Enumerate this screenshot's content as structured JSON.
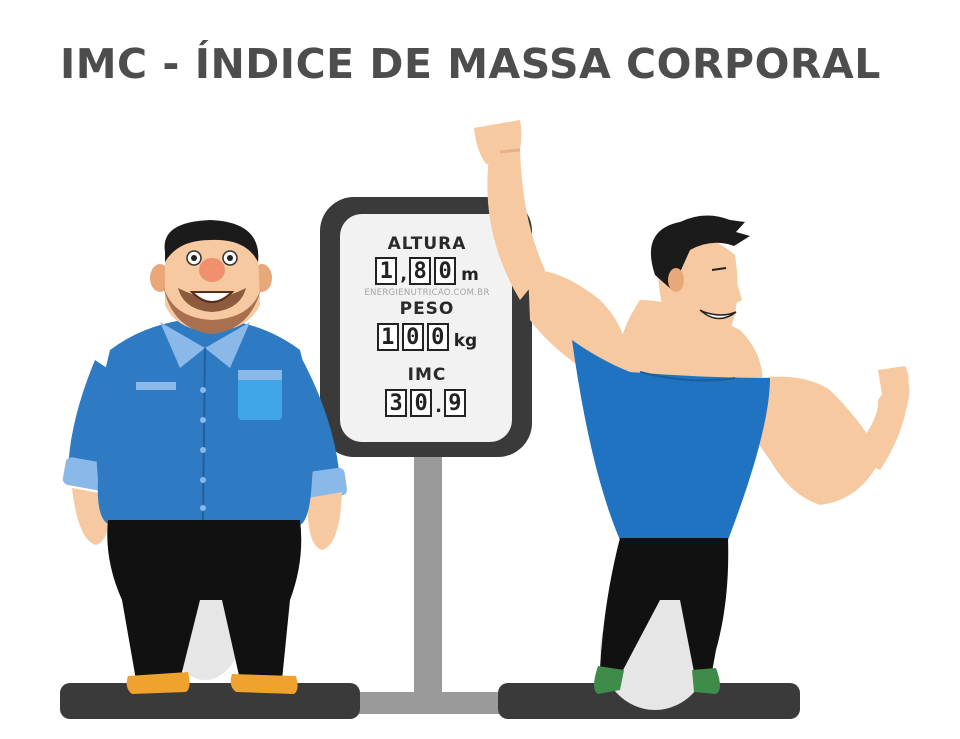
{
  "title": "IMC - ÍNDICE DE MASSA CORPORAL",
  "scale": {
    "altura": {
      "label": "ALTURA",
      "digits": [
        "1",
        "8",
        "0"
      ],
      "separator": ",",
      "unit": "m"
    },
    "watermark": "ENERGIENUTRICAO.COM.BR",
    "peso": {
      "label": "PESO",
      "digits": [
        "1",
        "0",
        "0"
      ],
      "unit": "kg"
    },
    "imc": {
      "label": "IMC",
      "digits": [
        "3",
        "0",
        "9"
      ],
      "separator": "."
    }
  },
  "colors": {
    "title": "#4d4d4d",
    "shirt_blue": "#2e7bc4",
    "tank_blue": "#1f73c0",
    "skin": "#f6c9a0",
    "scale_dark": "#3a3a3a",
    "scale_post": "#9a9a9a",
    "shoes": "#f0a22e"
  }
}
